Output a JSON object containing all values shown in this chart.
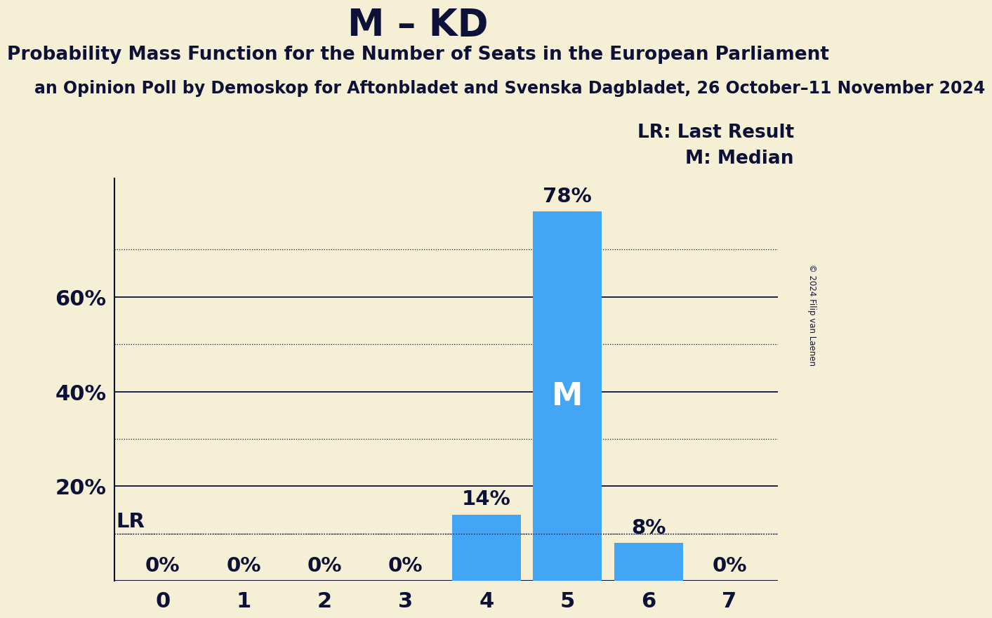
{
  "title": "M – KD",
  "subtitle": "Probability Mass Function for the Number of Seats in the European Parliament",
  "sub_subtitle": "an Opinion Poll by Demoskop for Aftonbladet and Svenska Dagbladet, 26 October–11 November 2024",
  "copyright": "© 2024 Filip van Laenen",
  "x_values": [
    0,
    1,
    2,
    3,
    4,
    5,
    6,
    7
  ],
  "y_values": [
    0,
    0,
    0,
    0,
    14,
    78,
    8,
    0
  ],
  "bar_color": "#42a5f5",
  "background_color": "#f5f0d5",
  "median_seat": 5,
  "lr_value": 10,
  "ylim": [
    0,
    85
  ],
  "ytick_positions": [
    20,
    40,
    60
  ],
  "ytick_labels": [
    "20%",
    "40%",
    "60%"
  ],
  "dotted_lines": [
    10,
    30,
    50,
    70
  ],
  "solid_lines": [
    20,
    40,
    60
  ],
  "title_fontsize": 38,
  "subtitle_fontsize": 19,
  "sub_subtitle_fontsize": 17,
  "annotation_fontsize": 21,
  "bar_label_fontsize": 21,
  "legend_fontsize": 19,
  "tick_fontsize": 22,
  "median_label_fontsize": 32,
  "text_color": "#0d1137"
}
